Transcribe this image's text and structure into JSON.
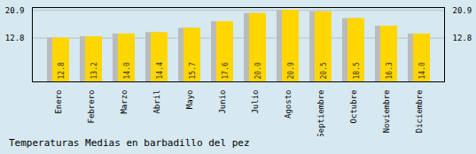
{
  "chart_data": {
    "type": "bar",
    "title": "Temperaturas Medias en barbadillo del pez",
    "categories": [
      "Enero",
      "Febrero",
      "Marzo",
      "Abril",
      "Mayo",
      "Junio",
      "Julio",
      "Agosto",
      "Septiembre",
      "Octubre",
      "Noviembre",
      "Diciembre"
    ],
    "values": [
      12.8,
      13.2,
      14.0,
      14.4,
      15.7,
      17.6,
      20.0,
      20.9,
      20.5,
      18.5,
      16.3,
      14.0
    ],
    "value_labels": [
      "12.8",
      "13.2",
      "14.0",
      "14.4",
      "15.7",
      "17.6",
      "20.0",
      "20.9",
      "20.5",
      "18.5",
      "16.3",
      "14.0"
    ],
    "color": "#FFD700",
    "ylim": [
      0,
      21.736
    ],
    "yticks": [
      12.8,
      20.9
    ],
    "grid": true,
    "data_labels": true
  }
}
